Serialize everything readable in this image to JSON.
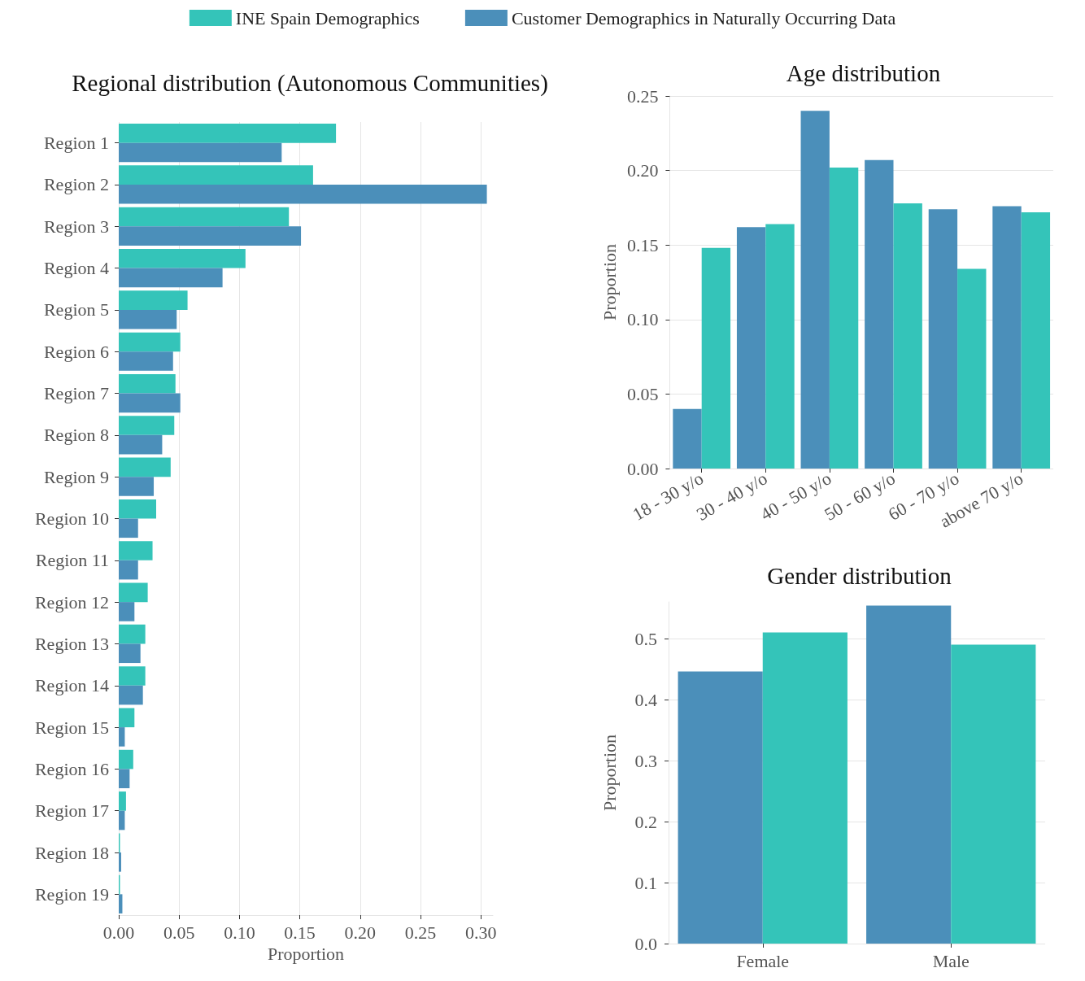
{
  "chart_data": [
    {
      "type": "bar",
      "orientation": "horizontal",
      "title": "Regional distribution (Autonomous Communities)",
      "xlabel": "Proportion",
      "legend": "top",
      "categories": [
        "Region 1",
        "Region 2",
        "Region 3",
        "Region 4",
        "Region 5",
        "Region 6",
        "Region 7",
        "Region 8",
        "Region 9",
        "Region 10",
        "Region 11",
        "Region 12",
        "Region 13",
        "Region 14",
        "Region 15",
        "Region 16",
        "Region 17",
        "Region 18",
        "Region 19"
      ],
      "series": [
        {
          "name": "INE Spain Demographics",
          "color": "#34c4b9",
          "values": [
            0.18,
            0.161,
            0.141,
            0.105,
            0.057,
            0.051,
            0.047,
            0.046,
            0.043,
            0.031,
            0.028,
            0.024,
            0.022,
            0.022,
            0.013,
            0.012,
            0.006,
            0.001,
            0.001
          ]
        },
        {
          "name": "Customer Demographics in Naturally Occurring Data",
          "color": "#4b8fba",
          "values": [
            0.135,
            0.305,
            0.151,
            0.086,
            0.048,
            0.045,
            0.051,
            0.036,
            0.029,
            0.016,
            0.016,
            0.013,
            0.018,
            0.02,
            0.005,
            0.009,
            0.005,
            0.002,
            0.003
          ]
        }
      ],
      "xlim": [
        0,
        0.31
      ],
      "xticks": [
        {
          "value": 0,
          "label": "0.00"
        },
        {
          "value": 0.05,
          "label": "0.05"
        },
        {
          "value": 0.1,
          "label": "0.10"
        },
        {
          "value": 0.15,
          "label": "0.15"
        },
        {
          "value": 0.2,
          "label": "0.20"
        },
        {
          "value": 0.25,
          "label": "0.25"
        },
        {
          "value": 0.3,
          "label": "0.30"
        }
      ],
      "grid": "x"
    },
    {
      "type": "bar",
      "title": "Age distribution",
      "ylabel": "Proportion",
      "categories": [
        "18 - 30 y/o",
        "30 - 40 y/o",
        "40 - 50 y/o",
        "50 - 60 y/o",
        "60 - 70 y/o",
        "above 70 y/o"
      ],
      "series": [
        {
          "color": "#4b8fba",
          "values": [
            0.04,
            0.162,
            0.24,
            0.207,
            0.174,
            0.176
          ]
        },
        {
          "color": "#34c4b9",
          "values": [
            0.148,
            0.164,
            0.202,
            0.178,
            0.134,
            0.172
          ]
        }
      ],
      "ylim": [
        0,
        0.25
      ],
      "yticks": [
        {
          "value": 0,
          "label": "0.00"
        },
        {
          "value": 0.05,
          "label": "0.05"
        },
        {
          "value": 0.1,
          "label": "0.10"
        },
        {
          "value": 0.15,
          "label": "0.15"
        },
        {
          "value": 0.2,
          "label": "0.20"
        },
        {
          "value": 0.25,
          "label": "0.25"
        }
      ],
      "grid": "y"
    },
    {
      "type": "bar",
      "title": "Gender distribution",
      "ylabel": "Proportion",
      "categories": [
        "Female",
        "Male"
      ],
      "series": [
        {
          "color": "#4b8fba",
          "values": [
            0.446,
            0.554
          ]
        },
        {
          "color": "#34c4b9",
          "values": [
            0.51,
            0.49
          ]
        }
      ],
      "ylim": [
        0,
        0.56
      ],
      "yticks": [
        {
          "value": 0,
          "label": "0.0"
        },
        {
          "value": 0.1,
          "label": "0.1"
        },
        {
          "value": 0.2,
          "label": "0.2"
        },
        {
          "value": 0.3,
          "label": "0.3"
        },
        {
          "value": 0.4,
          "label": "0.4"
        },
        {
          "value": 0.5,
          "label": "0.5"
        }
      ],
      "grid": "y"
    }
  ]
}
